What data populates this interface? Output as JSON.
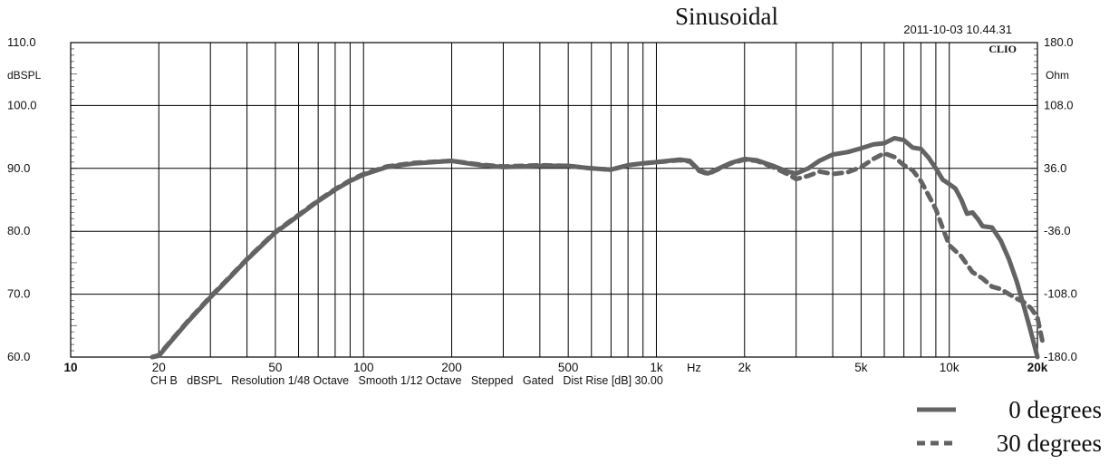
{
  "chart_data": {
    "type": "line",
    "title": "Sinusoidal",
    "timestamp": "2011-10-03 10.44.31",
    "brand": "CLIO",
    "xscale": "log",
    "xlim": [
      10,
      20000
    ],
    "ylim": [
      60,
      110
    ],
    "y2lim": [
      -180,
      180
    ],
    "ylabel": "dBSPL",
    "y2label": "Ohm",
    "xlabel": "Hz",
    "x_ticks": [
      10,
      20,
      50,
      100,
      200,
      500,
      1000,
      2000,
      5000,
      10000,
      20000
    ],
    "x_tick_labels": [
      "10",
      "20",
      "50",
      "100",
      "200",
      "500",
      "1k",
      "2k",
      "5k",
      "10k",
      "20k"
    ],
    "y_ticks": [
      60,
      70,
      80,
      90,
      100,
      110
    ],
    "y_tick_labels": [
      "60.0",
      "70.0",
      "80.0",
      "90.0",
      "100.0",
      "110.0"
    ],
    "y2_ticks": [
      -180,
      -108,
      -36,
      36,
      108,
      180
    ],
    "y2_tick_labels": [
      "-180.0",
      "-108.0",
      "-36.0",
      "36.0",
      "108.0",
      "180.0"
    ],
    "footer": "CH B   dBSPL   Resolution 1/48 Octave   Smooth 1/12 Octave   Stepped   Gated   Dist Rise [dB] 30.00",
    "grid": true,
    "legend_position": "bottom-right",
    "series": [
      {
        "name": "0 degrees",
        "style": "solid",
        "color": "#636363",
        "x": [
          19,
          20,
          22,
          25,
          30,
          35,
          40,
          50,
          60,
          70,
          80,
          90,
          100,
          120,
          150,
          200,
          250,
          300,
          400,
          500,
          600,
          700,
          800,
          900,
          1000,
          1200,
          1300,
          1400,
          1500,
          1600,
          1800,
          2000,
          2200,
          2500,
          2800,
          3000,
          3300,
          3600,
          4000,
          4500,
          5000,
          5500,
          6000,
          6500,
          7000,
          7500,
          8000,
          8500,
          9000,
          9500,
          10000,
          10500,
          11000,
          11500,
          12000,
          12500,
          13000,
          14000,
          15000,
          16000,
          17000,
          18000,
          19000,
          20000
        ],
        "values": [
          60,
          60.2,
          62.5,
          65.5,
          69.5,
          72.7,
          75.5,
          79.8,
          82.5,
          84.8,
          86.6,
          88,
          89,
          90.2,
          90.8,
          91.2,
          90.5,
          90.2,
          90.4,
          90.4,
          90,
          89.8,
          90.5,
          90.8,
          91,
          91.4,
          91.2,
          89.7,
          89.2,
          89.8,
          90.9,
          91.5,
          91.3,
          90.4,
          89.5,
          89.2,
          90,
          91.2,
          92.2,
          92.6,
          93.2,
          93.8,
          94,
          94.8,
          94.5,
          93.3,
          93.1,
          91.7,
          90,
          88.2,
          87.5,
          86.8,
          85,
          82.8,
          83,
          82,
          80.8,
          80.6,
          78.5,
          75.5,
          72,
          68,
          64,
          60
        ]
      },
      {
        "name": "30 degrees",
        "style": "dashed",
        "color": "#636363",
        "x": [
          19,
          20,
          22,
          25,
          30,
          35,
          40,
          50,
          60,
          70,
          80,
          90,
          100,
          120,
          150,
          200,
          250,
          300,
          400,
          500,
          600,
          700,
          800,
          900,
          1000,
          1200,
          1300,
          1400,
          1500,
          1600,
          1800,
          2000,
          2200,
          2500,
          2800,
          3000,
          3300,
          3600,
          4000,
          4500,
          5000,
          5500,
          6000,
          6500,
          7000,
          7500,
          8000,
          8500,
          9000,
          9500,
          10000,
          11000,
          12000,
          13000,
          14000,
          15000,
          16000,
          17000,
          18000,
          19000,
          20000,
          21000
        ],
        "values": [
          60,
          60.3,
          62.6,
          65.6,
          69.6,
          72.8,
          75.6,
          79.9,
          82.6,
          84.9,
          86.7,
          88.1,
          89.1,
          90.3,
          90.9,
          91.2,
          90.6,
          90.3,
          90.5,
          90.4,
          90,
          89.8,
          90.5,
          90.8,
          91,
          91.3,
          91.1,
          89.6,
          89.1,
          89.7,
          90.8,
          91.4,
          91.2,
          90.2,
          89.1,
          88.3,
          88.8,
          89.5,
          89.1,
          89.4,
          90.2,
          91.5,
          92.4,
          91.8,
          90.5,
          89.7,
          88,
          85.7,
          83.5,
          80.5,
          77.8,
          76,
          73.5,
          72.5,
          71.2,
          70.8,
          70,
          69.3,
          68.7,
          67.8,
          66.3,
          62.2
        ]
      }
    ]
  }
}
